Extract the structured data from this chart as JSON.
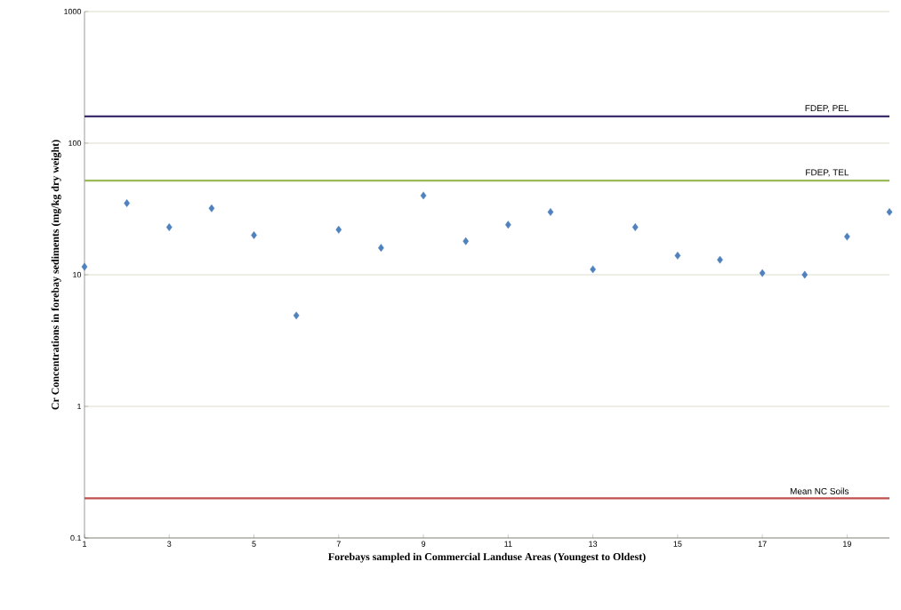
{
  "chart_data": {
    "type": "scatter",
    "xlabel": "Forebays sampled in Commercial Landuse Areas (Youngest to Oldest)",
    "ylabel": "Cr Concentrations in forebay sediments (mg/kg dry weight)",
    "x": [
      1,
      2,
      3,
      4,
      5,
      6,
      7,
      8,
      9,
      10,
      11,
      12,
      13,
      14,
      15,
      16,
      17,
      18,
      19,
      20
    ],
    "series": [
      {
        "color": "#4f81bd",
        "values": [
          11.5,
          35,
          23,
          32,
          20,
          4.9,
          22,
          16,
          40,
          18,
          24,
          30,
          11,
          23,
          14,
          13,
          10.3,
          10,
          19.5,
          30
        ]
      }
    ],
    "marker": "diamond",
    "log": "y",
    "grid": "y",
    "xlim": [
      1,
      20
    ],
    "xticks": [
      1,
      3,
      5,
      7,
      9,
      11,
      13,
      15,
      17,
      19
    ],
    "ylim": [
      0.1,
      1000
    ],
    "yticks": [
      0.1,
      1,
      10,
      100,
      1000
    ],
    "ref_lines": [
      {
        "axis": "y",
        "value": 160,
        "label": "FDEP, PEL",
        "color": "#3f2f6e"
      },
      {
        "axis": "y",
        "value": 52,
        "label": "FDEP, TEL",
        "color": "#9bbb59"
      },
      {
        "axis": "y",
        "value": 0.2,
        "label": "Mean NC Soils",
        "color": "#c0504d"
      }
    ]
  }
}
